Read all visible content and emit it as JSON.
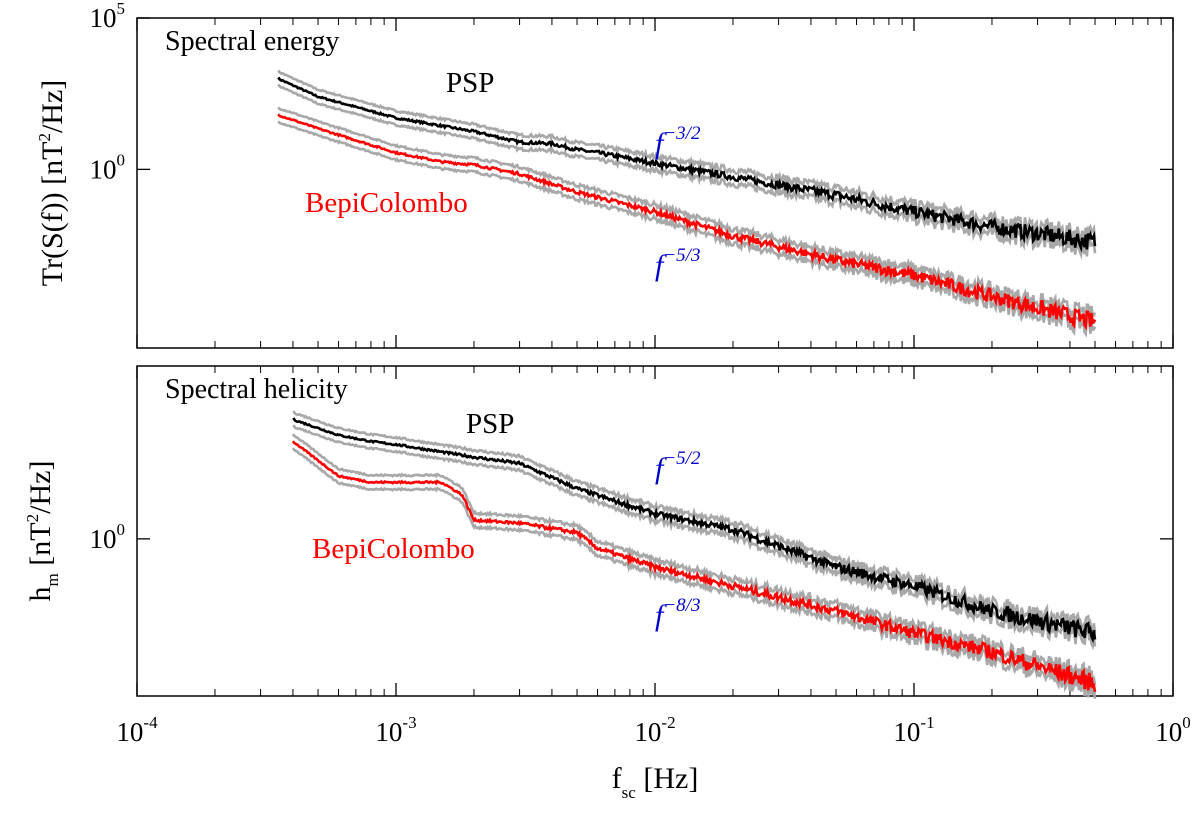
{
  "chart_data": [
    {
      "type": "line",
      "title": "Spectral energy",
      "xscale": "log",
      "yscale": "log",
      "xlim": [
        0.0001,
        1
      ],
      "ylim_exponent": [
        -5.9,
        5
      ],
      "ylabel": {
        "base": "Tr(S(f)) [nT",
        "sup": "2",
        "rest": "/Hz]"
      },
      "yticks": [
        {
          "value": 100000,
          "base": "10",
          "exp": "5"
        },
        {
          "value": 1,
          "base": "10",
          "exp": "0"
        }
      ],
      "series": [
        {
          "name": "PSP",
          "color": "#000000",
          "band_color": "#a8a8a8",
          "x": [
            0.00035,
            0.0005,
            0.001,
            0.002,
            0.003,
            0.004,
            0.005,
            0.006,
            0.01,
            0.02,
            0.05,
            0.1,
            0.2,
            0.5
          ],
          "log10_y": [
            3.0,
            2.4,
            1.7,
            1.25,
            0.9,
            0.85,
            0.65,
            0.55,
            0.2,
            -0.25,
            -0.85,
            -1.4,
            -1.9,
            -2.4
          ]
        },
        {
          "name": "BepiColombo",
          "color": "#ff0000",
          "band_color": "#a8a8a8",
          "x": [
            0.00035,
            0.0005,
            0.001,
            0.0015,
            0.002,
            0.003,
            0.005,
            0.01,
            0.02,
            0.05,
            0.1,
            0.2,
            0.5
          ],
          "log10_y": [
            1.8,
            1.35,
            0.55,
            0.25,
            0.15,
            -0.15,
            -0.75,
            -1.4,
            -2.2,
            -3.0,
            -3.5,
            -4.2,
            -5.05
          ]
        }
      ],
      "annotations": [
        {
          "kind": "slope",
          "base": "f",
          "exp": "−3/2",
          "x": 0.0104,
          "log10_y": 0.9
        },
        {
          "kind": "slope",
          "base": "f",
          "exp": "−5/3",
          "x": 0.0104,
          "log10_y": -2.9
        }
      ]
    },
    {
      "type": "line",
      "title": "Spectral helicity",
      "xscale": "log",
      "yscale": "log",
      "xlim": [
        0.0001,
        1
      ],
      "ylim_exponent": [
        -5.0,
        5.5
      ],
      "xlabel": {
        "base": "f",
        "sub": "sc",
        "rest": " [Hz]"
      },
      "ylabel": {
        "base": "h",
        "sub": "m",
        "rest": " [nT",
        "sup": "2",
        "rest2": "/Hz]"
      },
      "yticks": [
        {
          "value": 1,
          "base": "10",
          "exp": "0"
        }
      ],
      "xticks": [
        {
          "value": 0.0001,
          "base": "10",
          "exp": "-4"
        },
        {
          "value": 0.001,
          "base": "10",
          "exp": "-3"
        },
        {
          "value": 0.01,
          "base": "10",
          "exp": "-2"
        },
        {
          "value": 0.1,
          "base": "10",
          "exp": "-1"
        },
        {
          "value": 1,
          "base": "10",
          "exp": "0"
        }
      ],
      "series": [
        {
          "name": "PSP",
          "color": "#000000",
          "band_color": "#a8a8a8",
          "x": [
            0.0004,
            0.0006,
            0.0008,
            0.001,
            0.002,
            0.003,
            0.005,
            0.007,
            0.01,
            0.02,
            0.05,
            0.1,
            0.2,
            0.5
          ],
          "log10_y": [
            3.8,
            3.3,
            3.1,
            3.0,
            2.6,
            2.4,
            1.6,
            1.2,
            0.8,
            0.3,
            -0.9,
            -1.5,
            -2.3,
            -3.0
          ]
        },
        {
          "name": "BepiColombo",
          "color": "#ff0000",
          "band_color": "#a8a8a8",
          "x": [
            0.0004,
            0.0006,
            0.0008,
            0.0015,
            0.0018,
            0.002,
            0.003,
            0.005,
            0.006,
            0.01,
            0.02,
            0.05,
            0.1,
            0.2,
            0.5
          ],
          "log10_y": [
            3.1,
            2.0,
            1.8,
            1.8,
            1.4,
            0.6,
            0.5,
            0.2,
            -0.3,
            -0.9,
            -1.5,
            -2.3,
            -3.0,
            -3.6,
            -4.6
          ]
        }
      ],
      "annotations": [
        {
          "kind": "slope",
          "base": "f",
          "exp": "−5/2",
          "x": 0.0104,
          "log10_y": 1.85
        },
        {
          "kind": "slope",
          "base": "f",
          "exp": "−8/3",
          "x": 0.0104,
          "log10_y": -2.7
        }
      ]
    }
  ]
}
